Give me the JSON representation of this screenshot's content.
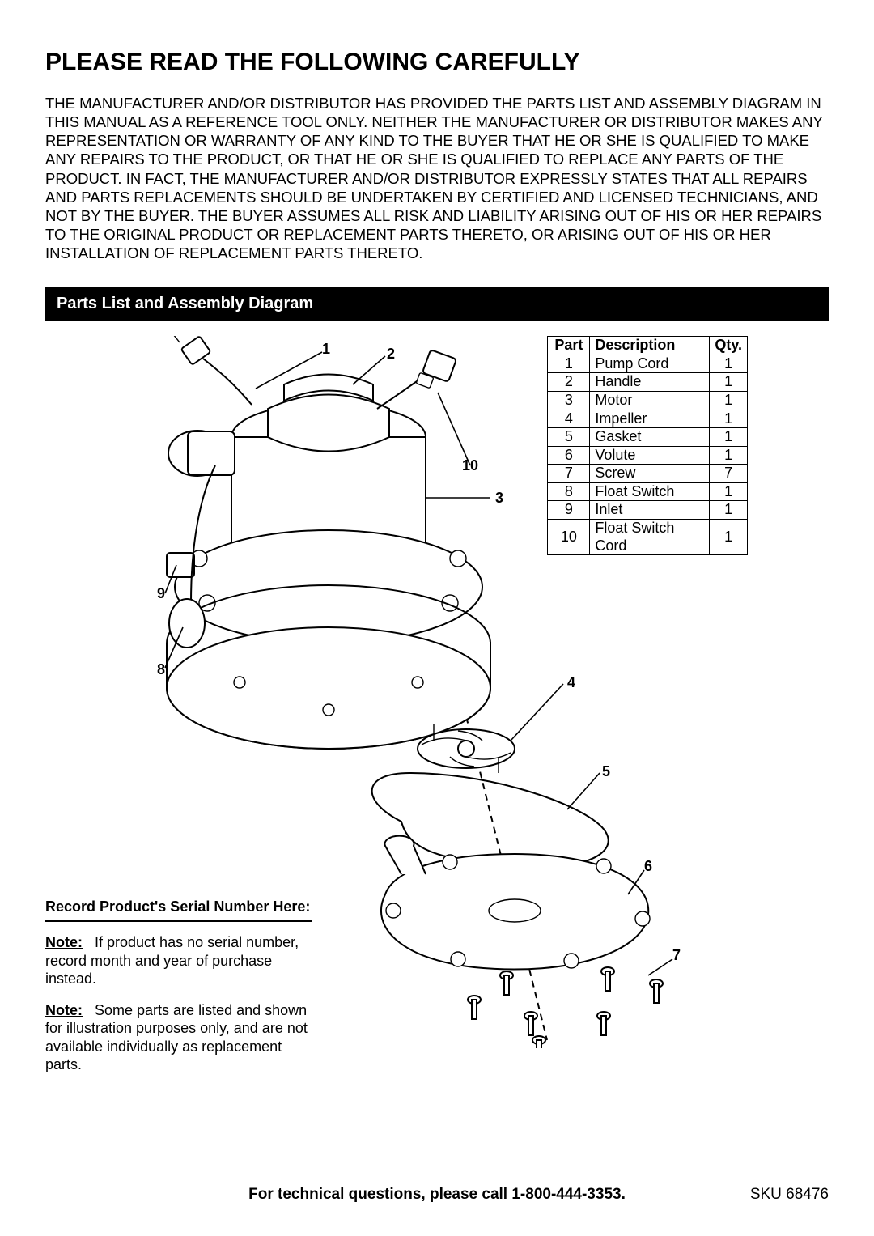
{
  "title": "PLEASE READ THE FOLLOWING CAREFULLY",
  "disclaimer": "THE MANUFACTURER AND/OR DISTRIBUTOR HAS PROVIDED THE PARTS LIST AND ASSEMBLY DIAGRAM IN THIS MANUAL AS A REFERENCE TOOL ONLY.  NEITHER THE MANUFACTURER OR DISTRIBUTOR MAKES ANY REPRESENTATION OR WARRANTY OF ANY KIND TO THE BUYER THAT HE OR SHE IS QUALIFIED TO MAKE ANY REPAIRS TO THE PRODUCT, OR THAT HE OR SHE IS QUALIFIED TO REPLACE ANY PARTS OF THE PRODUCT.  IN FACT, THE MANUFACTURER AND/OR DISTRIBUTOR EXPRESSLY STATES THAT ALL REPAIRS AND PARTS REPLACEMENTS SHOULD BE UNDERTAKEN BY CERTIFIED AND LICENSED TECHNICIANS, AND NOT BY THE BUYER.  THE BUYER ASSUMES ALL RISK AND LIABILITY ARISING OUT OF HIS OR HER REPAIRS TO THE ORIGINAL PRODUCT OR REPLACEMENT PARTS THERETO, OR ARISING OUT OF HIS OR HER INSTALLATION OF REPLACEMENT PARTS THERETO.",
  "section_title": "Parts List and Assembly Diagram",
  "table": {
    "headers": {
      "part": "Part",
      "desc": "Description",
      "qty": "Qty."
    },
    "rows": [
      {
        "part": "1",
        "desc": "Pump Cord",
        "qty": "1"
      },
      {
        "part": "2",
        "desc": "Handle",
        "qty": "1"
      },
      {
        "part": "3",
        "desc": "Motor",
        "qty": "1"
      },
      {
        "part": "4",
        "desc": "Impeller",
        "qty": "1"
      },
      {
        "part": "5",
        "desc": "Gasket",
        "qty": "1"
      },
      {
        "part": "6",
        "desc": "Volute",
        "qty": "1"
      },
      {
        "part": "7",
        "desc": "Screw",
        "qty": "7"
      },
      {
        "part": "8",
        "desc": "Float Switch",
        "qty": "1"
      },
      {
        "part": "9",
        "desc": "Inlet",
        "qty": "1"
      },
      {
        "part": "10",
        "desc": "Float Switch Cord",
        "qty": "1"
      }
    ]
  },
  "callouts": {
    "n1": "1",
    "n2": "2",
    "n3": "3",
    "n4": "4",
    "n5": "5",
    "n6": "6",
    "n7": "7",
    "n8": "8",
    "n9": "9",
    "n10": "10"
  },
  "serial": {
    "title": "Record Product's Serial Number Here:",
    "note_label": "Note:",
    "note1": "If product has no serial number, record month and year of purchase instead.",
    "note2": "Some parts are listed and shown for illustration purposes only, and are not available individually as replacement parts."
  },
  "footer": {
    "center": "For technical questions, please call 1-800-444-3353.",
    "sku": "SKU 68476"
  },
  "diagram_style": {
    "type": "exploded-technical-line-drawing",
    "stroke_color": "#000000",
    "fill_color": "#ffffff",
    "stroke_width_main": 2,
    "stroke_width_detail": 1.4,
    "center_line_dash": "8 6",
    "callout_font_weight": "bold",
    "callout_font_size": 18
  }
}
